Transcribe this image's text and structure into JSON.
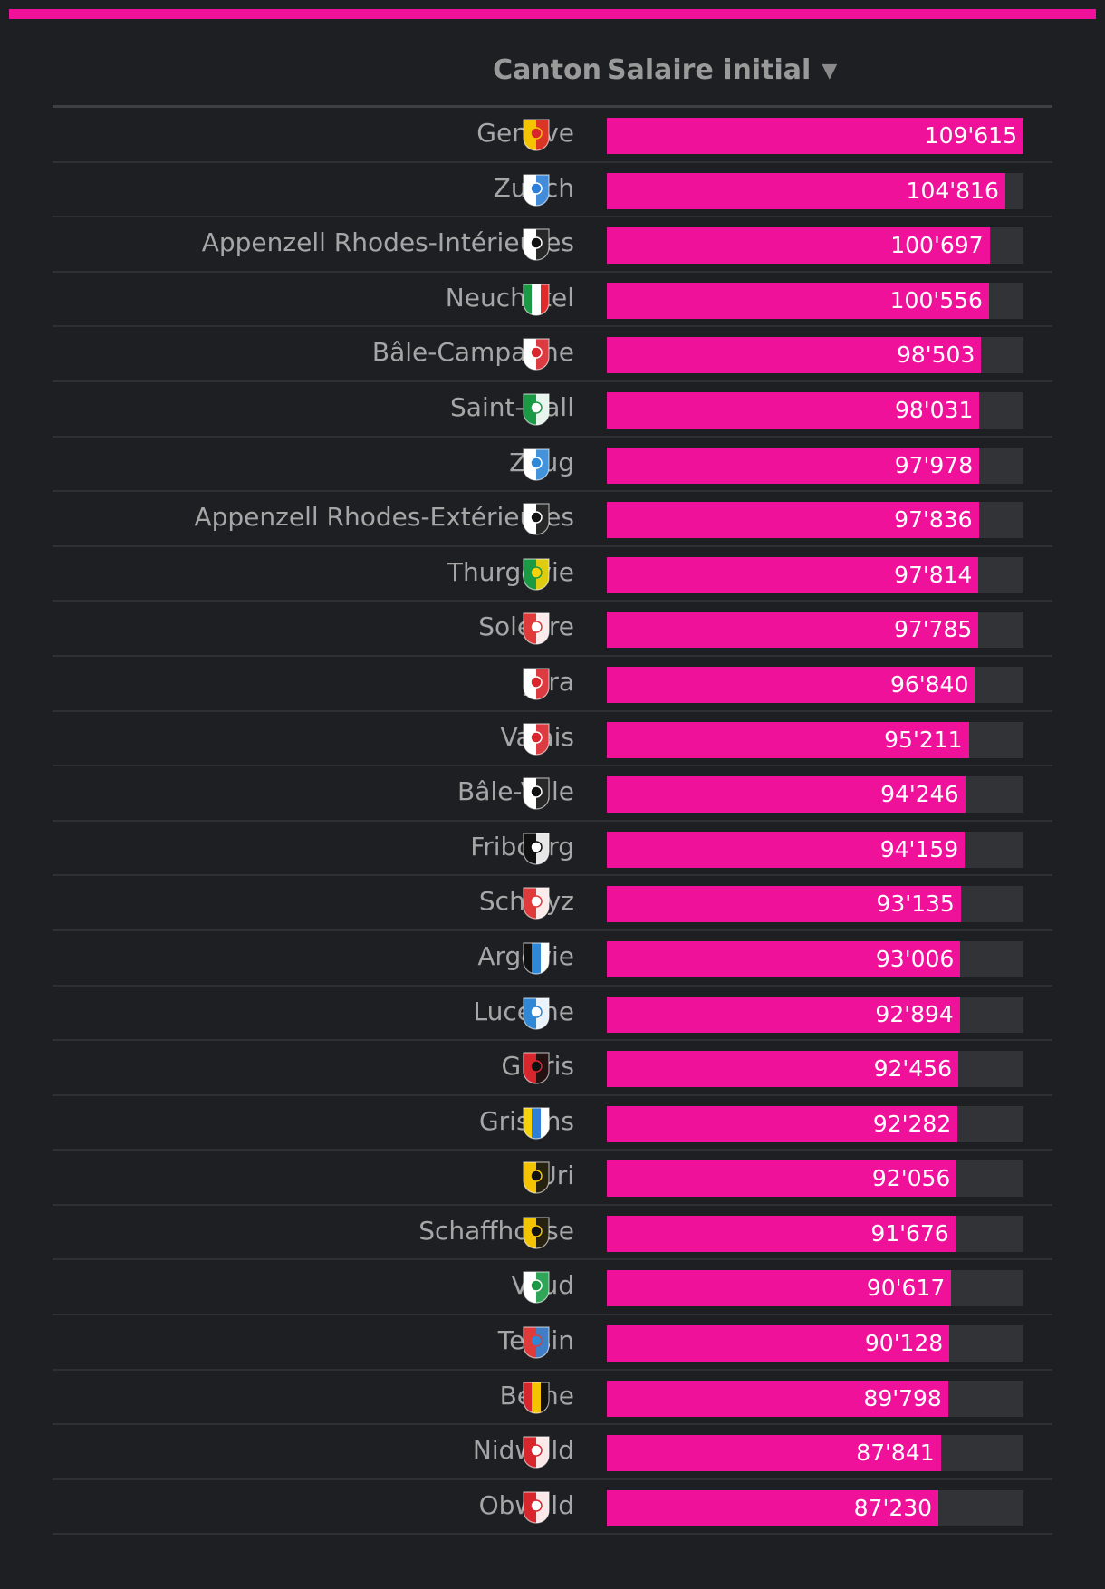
{
  "colors": {
    "accent": "#f0119b",
    "track": "#323336",
    "background": "#1e1f22"
  },
  "table": {
    "header_canton": "Canton",
    "header_salary": "Salaire initial",
    "sort_icon": "triangle-down-icon"
  },
  "chart_data": {
    "type": "bar",
    "orientation": "horizontal",
    "xlim": [
      0,
      109615
    ],
    "categories": [
      "Genève",
      "Zurich",
      "Appenzell Rhodes-Intérieures",
      "Neuchâtel",
      "Bâle-Campagne",
      "Saint-Gall",
      "Zoug",
      "Appenzell Rhodes-Extérieures",
      "Thurgovie",
      "Soleure",
      "Jura",
      "Valais",
      "Bâle-Ville",
      "Fribourg",
      "Schwyz",
      "Argovie",
      "Lucerne",
      "Glaris",
      "Grisons",
      "Uri",
      "Schaffhouse",
      "Vaud",
      "Tessin",
      "Berne",
      "Nidwald",
      "Obwald"
    ],
    "values": [
      109615,
      104816,
      100697,
      100556,
      98503,
      98031,
      97978,
      97836,
      97814,
      97785,
      96840,
      95211,
      94246,
      94159,
      93135,
      93006,
      92894,
      92456,
      92282,
      92056,
      91676,
      90617,
      90128,
      89798,
      87841,
      87230
    ],
    "labels": [
      "109'615",
      "104'816",
      "100'697",
      "100'556",
      "98'503",
      "98'031",
      "97'978",
      "97'836",
      "97'814",
      "97'785",
      "96'840",
      "95'211",
      "94'246",
      "94'159",
      "93'135",
      "93'006",
      "92'894",
      "92'456",
      "92'282",
      "92'056",
      "91'676",
      "90'617",
      "90'128",
      "89'798",
      "87'841",
      "87'230"
    ],
    "crests": [
      {
        "icon": "geneva-crest-icon",
        "colors": [
          "#f5c400",
          "#d8262c"
        ]
      },
      {
        "icon": "zurich-crest-icon",
        "colors": [
          "#ffffff",
          "#2f7fd6"
        ]
      },
      {
        "icon": "appenzell-innerrhoden-crest-icon",
        "colors": [
          "#ffffff",
          "#111111"
        ]
      },
      {
        "icon": "neuchatel-crest-icon",
        "colors": [
          "#1a9a45",
          "#ffffff",
          "#e12b2b"
        ]
      },
      {
        "icon": "basel-landschaft-crest-icon",
        "colors": [
          "#ffffff",
          "#d8262c"
        ]
      },
      {
        "icon": "st-gallen-crest-icon",
        "colors": [
          "#1a9a45",
          "#ffffff"
        ]
      },
      {
        "icon": "zug-crest-icon",
        "colors": [
          "#ffffff",
          "#2f87d6"
        ]
      },
      {
        "icon": "appenzell-ausserrhoden-crest-icon",
        "colors": [
          "#ffffff",
          "#111111"
        ]
      },
      {
        "icon": "thurgau-crest-icon",
        "colors": [
          "#1a9a45",
          "#f5d20a"
        ]
      },
      {
        "icon": "solothurn-crest-icon",
        "colors": [
          "#e13a3a",
          "#ffffff"
        ]
      },
      {
        "icon": "jura-crest-icon",
        "colors": [
          "#ffffff",
          "#d8262c"
        ]
      },
      {
        "icon": "valais-crest-icon",
        "colors": [
          "#ffffff",
          "#d8262c"
        ]
      },
      {
        "icon": "basel-stadt-crest-icon",
        "colors": [
          "#ffffff",
          "#111111"
        ]
      },
      {
        "icon": "fribourg-crest-icon",
        "colors": [
          "#111111",
          "#ffffff"
        ]
      },
      {
        "icon": "schwyz-crest-icon",
        "colors": [
          "#e13a3a",
          "#ffffff"
        ]
      },
      {
        "icon": "aargau-crest-icon",
        "colors": [
          "#111111",
          "#2f87d6",
          "#ffffff"
        ]
      },
      {
        "icon": "lucerne-crest-icon",
        "colors": [
          "#2f87d6",
          "#ffffff"
        ]
      },
      {
        "icon": "glarus-crest-icon",
        "colors": [
          "#d8262c",
          "#111111"
        ]
      },
      {
        "icon": "graubunden-crest-icon",
        "colors": [
          "#f5d20a",
          "#2f7fd6",
          "#ffffff"
        ]
      },
      {
        "icon": "uri-crest-icon",
        "colors": [
          "#f5c400",
          "#111111"
        ]
      },
      {
        "icon": "schaffhausen-crest-icon",
        "colors": [
          "#f5c400",
          "#111111"
        ]
      },
      {
        "icon": "vaud-crest-icon",
        "colors": [
          "#ffffff",
          "#1a9a45"
        ]
      },
      {
        "icon": "ticino-crest-icon",
        "colors": [
          "#e13a3a",
          "#2f87d6"
        ]
      },
      {
        "icon": "bern-crest-icon",
        "colors": [
          "#d8262c",
          "#f5c400",
          "#111111"
        ]
      },
      {
        "icon": "nidwalden-crest-icon",
        "colors": [
          "#d8262c",
          "#ffffff"
        ]
      },
      {
        "icon": "obwalden-crest-icon",
        "colors": [
          "#d8262c",
          "#ffffff"
        ]
      }
    ]
  }
}
